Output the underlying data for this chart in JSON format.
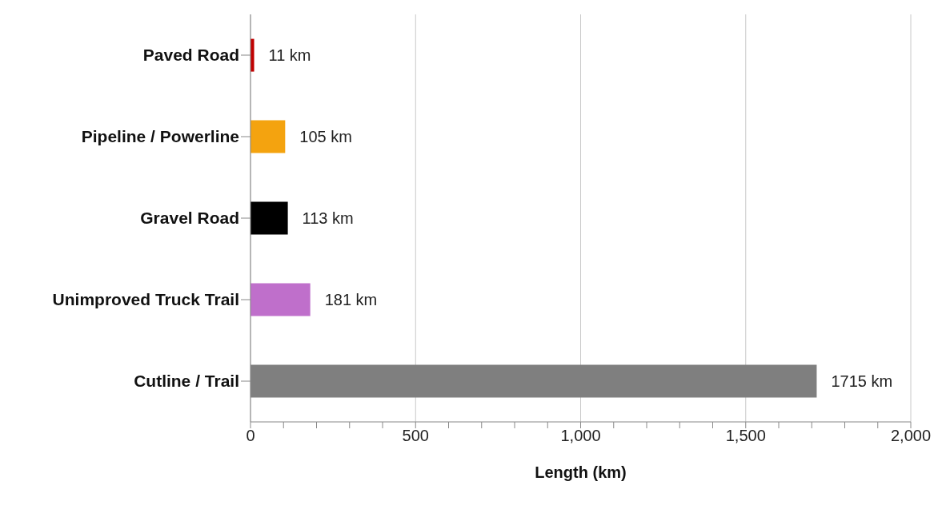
{
  "chart_data": {
    "type": "bar",
    "orientation": "horizontal",
    "xlabel": "Length (km)",
    "categories": [
      "Paved Road",
      "Pipeline / Powerline",
      "Gravel Road",
      "Unimproved Truck Trail",
      "Cutline / Trail"
    ],
    "values": [
      11,
      105,
      113,
      181,
      1715
    ],
    "colors": [
      "#c00000",
      "#f4a30f",
      "#000000",
      "#bf6fcb",
      "#7f7f7f"
    ],
    "value_labels": [
      "11 km",
      "105 km",
      "113 km",
      "181 km",
      "1715 km"
    ],
    "xlim": [
      0,
      2000
    ],
    "xticks": [
      0,
      {
        "value": 100,
        "label": null
      },
      {
        "value": 200,
        "label": null
      },
      {
        "value": 300,
        "label": null
      },
      {
        "value": 400,
        "label": null
      },
      500,
      {
        "value": 600,
        "label": null
      },
      {
        "value": 700,
        "label": null
      },
      {
        "value": 800,
        "label": null
      },
      {
        "value": 900,
        "label": null
      },
      {
        "value": 1000,
        "label": "1,000"
      },
      {
        "value": 1100,
        "label": null
      },
      {
        "value": 1200,
        "label": null
      },
      {
        "value": 1300,
        "label": null
      },
      {
        "value": 1400,
        "label": null
      },
      {
        "value": 1500,
        "label": "1,500"
      },
      {
        "value": 1600,
        "label": null
      },
      {
        "value": 1700,
        "label": null
      },
      {
        "value": 1800,
        "label": null
      },
      {
        "value": 1900,
        "label": null
      },
      {
        "value": 2000,
        "label": "2,000"
      }
    ],
    "grid": "x",
    "legend": false
  }
}
